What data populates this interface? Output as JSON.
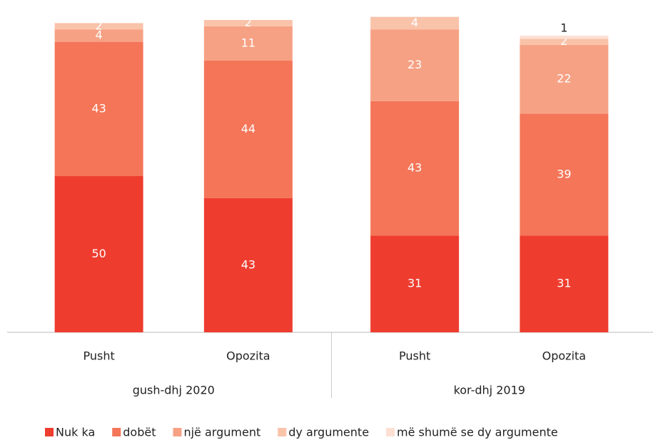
{
  "chart_data": {
    "type": "stacked-bar",
    "categories": [
      "Pusht",
      "Opozita",
      "Pusht",
      "Opozita"
    ],
    "groups": [
      "gush-dhj 2020",
      "kor-dhj 2019"
    ],
    "series": [
      {
        "name": "Nuk ka",
        "color": "#ee3d2f",
        "values": [
          50,
          43,
          31,
          31
        ]
      },
      {
        "name": "dobët",
        "color": "#f47558",
        "values": [
          43,
          44,
          43,
          39
        ]
      },
      {
        "name": "një argument",
        "color": "#f6a184",
        "values": [
          4,
          11,
          23,
          22
        ]
      },
      {
        "name": "dy argumente",
        "color": "#f9c3aa",
        "values": [
          2,
          2,
          4,
          2
        ]
      },
      {
        "name": "më shumë se dy argumente",
        "color": "#fde0d3",
        "values": [
          null,
          null,
          null,
          1
        ]
      }
    ],
    "ylim": [
      0,
      100
    ],
    "legend": "bottom"
  }
}
